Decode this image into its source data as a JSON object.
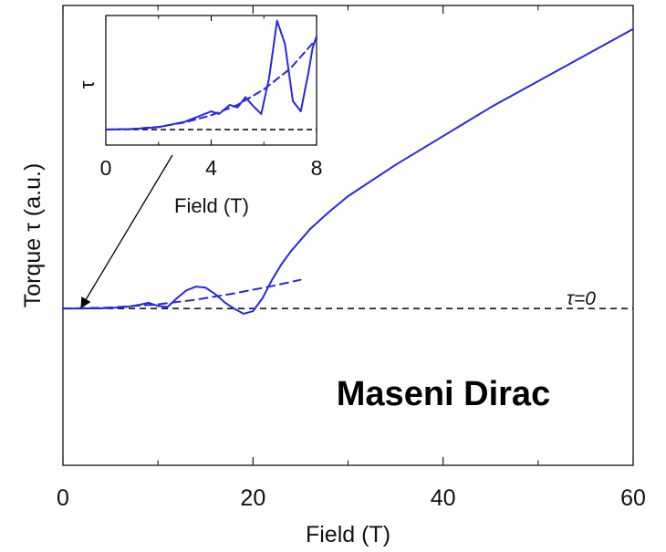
{
  "chart_data": [
    {
      "type": "line",
      "xlabel": "Field (T)",
      "ylabel": "Torque τ (a.u.)",
      "xlim": [
        0,
        60
      ],
      "ylim": [
        -3.0,
        5.8
      ],
      "x_ticks": [
        0,
        20,
        40,
        60
      ],
      "x_tick_labels": [
        "0",
        "20",
        "40",
        "60"
      ],
      "grid": false,
      "reference_line": {
        "y": 0,
        "label": "τ=0",
        "style": "dashed",
        "color": "#000000"
      },
      "annotation": "Maseni Dirac",
      "series": [
        {
          "style": "solid",
          "color": "#2727e6",
          "x": [
            0,
            2,
            4,
            6,
            7,
            8,
            9,
            10,
            11,
            12,
            13,
            14,
            15,
            16,
            17,
            18,
            19,
            20,
            21,
            22,
            23,
            24,
            26,
            28,
            30,
            35,
            40,
            45,
            50,
            55,
            60
          ],
          "y": [
            0,
            0,
            0.005,
            0.02,
            0.04,
            0.07,
            0.11,
            0.05,
            0.03,
            0.2,
            0.35,
            0.42,
            0.4,
            0.28,
            0.12,
            0.0,
            -0.1,
            -0.05,
            0.2,
            0.55,
            0.85,
            1.1,
            1.52,
            1.85,
            2.15,
            2.75,
            3.3,
            3.85,
            4.35,
            4.85,
            5.35
          ]
        },
        {
          "style": "dashed",
          "color": "#2727e6",
          "x": [
            0,
            5,
            10,
            14,
            18,
            22,
            25
          ],
          "y": [
            0,
            0.02,
            0.08,
            0.17,
            0.29,
            0.43,
            0.55
          ]
        }
      ]
    },
    {
      "type": "line",
      "xlabel": "Field (T)",
      "ylabel": "τ",
      "xlim": [
        0,
        8
      ],
      "ylim": [
        -0.12,
        0.88
      ],
      "x_ticks": [
        0,
        4,
        8
      ],
      "x_tick_labels": [
        "0",
        "4",
        "8"
      ],
      "reference_line": {
        "y": 0,
        "style": "dashed",
        "color": "#000000"
      },
      "series": [
        {
          "style": "solid",
          "color": "#2727e6",
          "x": [
            0,
            1,
            2,
            3,
            3.5,
            4,
            4.3,
            4.7,
            5.0,
            5.3,
            5.6,
            5.9,
            6.2,
            6.5,
            6.8,
            7.1,
            7.4,
            7.7,
            7.85,
            8.0
          ],
          "y": [
            0,
            0.003,
            0.018,
            0.06,
            0.1,
            0.14,
            0.12,
            0.19,
            0.17,
            0.25,
            0.18,
            0.12,
            0.4,
            0.84,
            0.66,
            0.22,
            0.14,
            0.45,
            0.63,
            0.72
          ]
        },
        {
          "style": "dashed",
          "color": "#2727e6",
          "x": [
            0,
            1,
            2,
            3,
            4,
            5,
            6,
            7,
            8
          ],
          "y": [
            0,
            0.005,
            0.02,
            0.055,
            0.11,
            0.19,
            0.31,
            0.47,
            0.7
          ]
        }
      ]
    }
  ]
}
